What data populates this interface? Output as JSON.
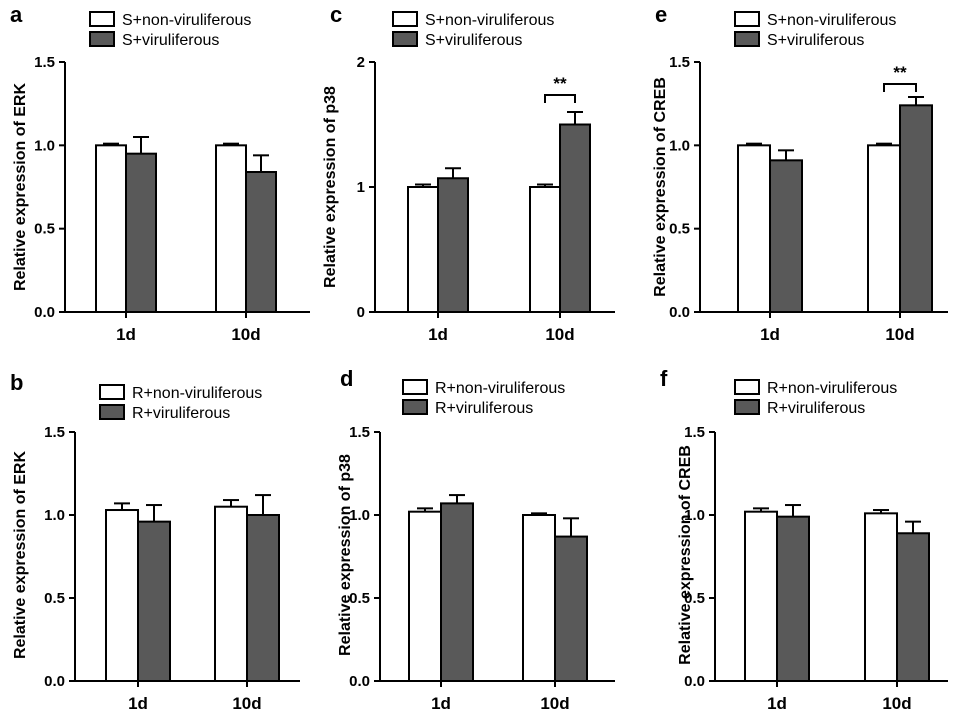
{
  "colors": {
    "bar_nonviruliferous": "#ffffff",
    "bar_viruliferous": "#595959",
    "axis": "#000000"
  },
  "chart_data": [
    {
      "panel": "a",
      "type": "bar",
      "ylabel": "Relative expression of ERK",
      "categories": [
        "1d",
        "10d"
      ],
      "ylim": [
        0,
        1.5
      ],
      "yticks": [
        "0.0",
        "0.5",
        "1.0",
        "1.5"
      ],
      "legend_position": "top",
      "series": [
        {
          "name": "S+non-viruliferous",
          "values": [
            1.0,
            1.0
          ],
          "errors": [
            0.01,
            0.01
          ]
        },
        {
          "name": "S+viruliferous",
          "values": [
            0.95,
            0.84
          ],
          "errors": [
            0.1,
            0.1
          ]
        }
      ],
      "significance": []
    },
    {
      "panel": "c",
      "type": "bar",
      "ylabel": "Relative expression of p38",
      "categories": [
        "1d",
        "10d"
      ],
      "ylim": [
        0,
        2
      ],
      "yticks": [
        "0",
        "1",
        "2"
      ],
      "legend_position": "top",
      "series": [
        {
          "name": "S+non-viruliferous",
          "values": [
            1.0,
            1.0
          ],
          "errors": [
            0.02,
            0.02
          ]
        },
        {
          "name": "S+viruliferous",
          "values": [
            1.07,
            1.5
          ],
          "errors": [
            0.08,
            0.1
          ]
        }
      ],
      "significance": [
        {
          "category": "10d",
          "label": "**"
        }
      ]
    },
    {
      "panel": "e",
      "type": "bar",
      "ylabel": "Relative expression of CREB",
      "categories": [
        "1d",
        "10d"
      ],
      "ylim": [
        0,
        1.5
      ],
      "yticks": [
        "0.0",
        "0.5",
        "1.0",
        "1.5"
      ],
      "legend_position": "top",
      "series": [
        {
          "name": "S+non-viruliferous",
          "values": [
            1.0,
            1.0
          ],
          "errors": [
            0.01,
            0.01
          ]
        },
        {
          "name": "S+viruliferous",
          "values": [
            0.91,
            1.24
          ],
          "errors": [
            0.06,
            0.05
          ]
        }
      ],
      "significance": [
        {
          "category": "10d",
          "label": "**"
        }
      ]
    },
    {
      "panel": "b",
      "type": "bar",
      "ylabel": "Relative expression of ERK",
      "categories": [
        "1d",
        "10d"
      ],
      "ylim": [
        0,
        1.5
      ],
      "yticks": [
        "0.0",
        "0.5",
        "1.0",
        "1.5"
      ],
      "legend_position": "top",
      "series": [
        {
          "name": "R+non-viruliferous",
          "values": [
            1.03,
            1.05
          ],
          "errors": [
            0.04,
            0.04
          ]
        },
        {
          "name": "R+viruliferous",
          "values": [
            0.96,
            1.0
          ],
          "errors": [
            0.1,
            0.12
          ]
        }
      ],
      "significance": []
    },
    {
      "panel": "d",
      "type": "bar",
      "ylabel": "Relative expression of p38",
      "categories": [
        "1d",
        "10d"
      ],
      "ylim": [
        0,
        1.5
      ],
      "yticks": [
        "0.0",
        "0.5",
        "1.0",
        "1.5"
      ],
      "legend_position": "top",
      "series": [
        {
          "name": "R+non-viruliferous",
          "values": [
            1.02,
            1.0
          ],
          "errors": [
            0.02,
            0.01
          ]
        },
        {
          "name": "R+viruliferous",
          "values": [
            1.07,
            0.87
          ],
          "errors": [
            0.05,
            0.11
          ]
        }
      ],
      "significance": []
    },
    {
      "panel": "f",
      "type": "bar",
      "ylabel": "Relative expression of CREB",
      "categories": [
        "1d",
        "10d"
      ],
      "ylim": [
        0,
        1.5
      ],
      "yticks": [
        "0.0",
        "0.5",
        "1.0",
        "1.5"
      ],
      "legend_position": "top",
      "series": [
        {
          "name": "R+non-viruliferous",
          "values": [
            1.02,
            1.01
          ],
          "errors": [
            0.02,
            0.02
          ]
        },
        {
          "name": "R+viruliferous",
          "values": [
            0.99,
            0.89
          ],
          "errors": [
            0.07,
            0.07
          ]
        }
      ],
      "significance": []
    }
  ]
}
